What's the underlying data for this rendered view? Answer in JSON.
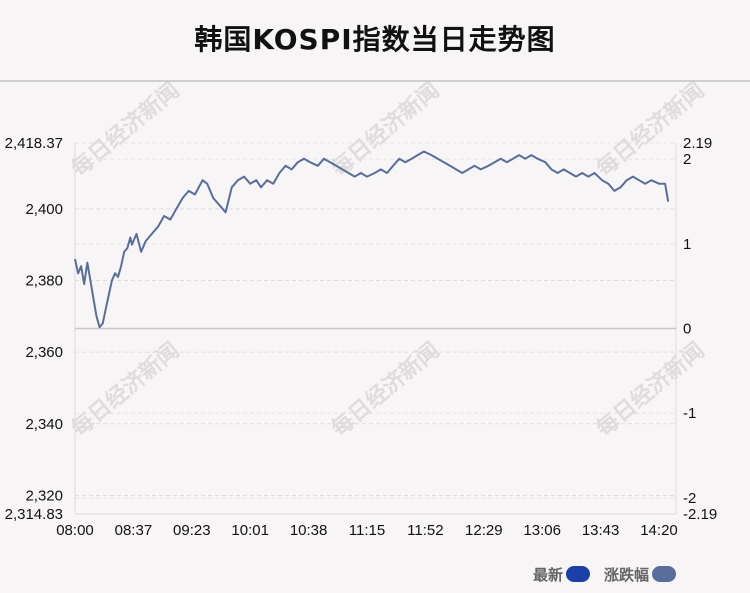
{
  "title": "韩国KOSPI指数当日走势图",
  "watermark": "每日经济新闻",
  "legend": {
    "latest_label": "最新",
    "latest_color": "#1d3fa8",
    "change_label": "涨跌幅",
    "change_color": "#5a6e9c"
  },
  "chart_data": {
    "type": "line",
    "title": "韩国KOSPI指数当日走势图",
    "x_ticks": [
      "08:00",
      "08:37",
      "09:23",
      "10:01",
      "10:38",
      "11:15",
      "11:52",
      "12:29",
      "13:06",
      "13:43",
      "14:20"
    ],
    "y_left": {
      "range": [
        2314.83,
        2418.37
      ],
      "ticks": [
        "2,418.37",
        "2,400",
        "2,380",
        "2,360",
        "2,340",
        "2,320",
        "2,314.83"
      ],
      "tick_values": [
        2418.37,
        2400,
        2380,
        2360,
        2340,
        2320,
        2314.83
      ]
    },
    "y_right": {
      "range": [
        -2.19,
        2.19
      ],
      "ticks": [
        "2.19",
        "2",
        "1",
        "0",
        "-1",
        "-2",
        "-2.19"
      ],
      "tick_values": [
        2.19,
        2,
        1,
        0,
        -1,
        -2,
        -2.19
      ]
    },
    "baseline": 2366.6,
    "line_color": "#5a6e9c",
    "grid": true,
    "series": [
      {
        "name": "最新",
        "points": [
          [
            "08:00",
            2386
          ],
          [
            "08:02",
            2382
          ],
          [
            "08:04",
            2384
          ],
          [
            "08:06",
            2379
          ],
          [
            "08:08",
            2385
          ],
          [
            "08:10",
            2380
          ],
          [
            "08:12",
            2375
          ],
          [
            "08:14",
            2370
          ],
          [
            "08:16",
            2367
          ],
          [
            "08:18",
            2368
          ],
          [
            "08:20",
            2372
          ],
          [
            "08:22",
            2376
          ],
          [
            "08:24",
            2380
          ],
          [
            "08:26",
            2382
          ],
          [
            "08:28",
            2381
          ],
          [
            "08:30",
            2384
          ],
          [
            "08:32",
            2388
          ],
          [
            "08:34",
            2389
          ],
          [
            "08:36",
            2392
          ],
          [
            "08:37",
            2390
          ],
          [
            "08:40",
            2393
          ],
          [
            "08:43",
            2388
          ],
          [
            "08:46",
            2391
          ],
          [
            "08:50",
            2393
          ],
          [
            "08:54",
            2395
          ],
          [
            "08:58",
            2398
          ],
          [
            "09:02",
            2397
          ],
          [
            "09:06",
            2400
          ],
          [
            "09:10",
            2403
          ],
          [
            "09:14",
            2405
          ],
          [
            "09:18",
            2404
          ],
          [
            "09:23",
            2408
          ],
          [
            "09:26",
            2407
          ],
          [
            "09:30",
            2403
          ],
          [
            "09:34",
            2401
          ],
          [
            "09:38",
            2399
          ],
          [
            "09:42",
            2406
          ],
          [
            "09:46",
            2408
          ],
          [
            "09:50",
            2409
          ],
          [
            "09:54",
            2407
          ],
          [
            "09:58",
            2408
          ],
          [
            "10:01",
            2406
          ],
          [
            "10:05",
            2408
          ],
          [
            "10:09",
            2407
          ],
          [
            "10:13",
            2410
          ],
          [
            "10:17",
            2412
          ],
          [
            "10:21",
            2411
          ],
          [
            "10:25",
            2413
          ],
          [
            "10:29",
            2414
          ],
          [
            "10:33",
            2413
          ],
          [
            "10:38",
            2412
          ],
          [
            "10:42",
            2414
          ],
          [
            "10:46",
            2413
          ],
          [
            "10:50",
            2412
          ],
          [
            "10:54",
            2411
          ],
          [
            "10:58",
            2410
          ],
          [
            "11:02",
            2409
          ],
          [
            "11:06",
            2410
          ],
          [
            "11:10",
            2409
          ],
          [
            "11:15",
            2410
          ],
          [
            "11:19",
            2411
          ],
          [
            "11:23",
            2410
          ],
          [
            "11:27",
            2412
          ],
          [
            "11:31",
            2414
          ],
          [
            "11:35",
            2413
          ],
          [
            "11:39",
            2414
          ],
          [
            "11:43",
            2415
          ],
          [
            "11:47",
            2416
          ],
          [
            "11:52",
            2415
          ],
          [
            "11:56",
            2414
          ],
          [
            "12:00",
            2413
          ],
          [
            "12:04",
            2412
          ],
          [
            "12:08",
            2411
          ],
          [
            "12:12",
            2410
          ],
          [
            "12:16",
            2411
          ],
          [
            "12:20",
            2412
          ],
          [
            "12:24",
            2411
          ],
          [
            "12:29",
            2412
          ],
          [
            "12:33",
            2413
          ],
          [
            "12:37",
            2414
          ],
          [
            "12:41",
            2413
          ],
          [
            "12:45",
            2414
          ],
          [
            "12:49",
            2415
          ],
          [
            "12:53",
            2414
          ],
          [
            "12:57",
            2415
          ],
          [
            "13:01",
            2414
          ],
          [
            "13:06",
            2413
          ],
          [
            "13:10",
            2411
          ],
          [
            "13:14",
            2410
          ],
          [
            "13:18",
            2411
          ],
          [
            "13:22",
            2410
          ],
          [
            "13:26",
            2409
          ],
          [
            "13:30",
            2410
          ],
          [
            "13:34",
            2409
          ],
          [
            "13:38",
            2410
          ],
          [
            "13:43",
            2408
          ],
          [
            "13:47",
            2407
          ],
          [
            "13:51",
            2405
          ],
          [
            "13:55",
            2406
          ],
          [
            "13:59",
            2408
          ],
          [
            "14:03",
            2409
          ],
          [
            "14:07",
            2408
          ],
          [
            "14:11",
            2407
          ],
          [
            "14:15",
            2408
          ],
          [
            "14:20",
            2407
          ],
          [
            "14:24",
            2407
          ],
          [
            "14:26",
            2402
          ]
        ]
      }
    ]
  }
}
